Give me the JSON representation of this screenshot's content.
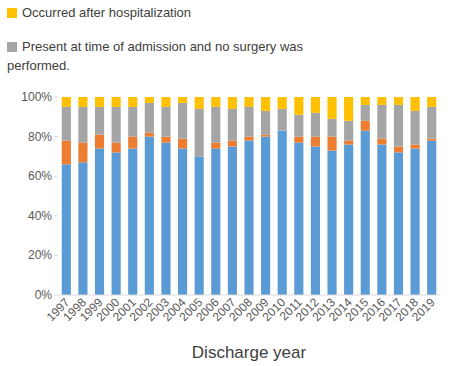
{
  "chart_data": {
    "type": "bar",
    "stacked": true,
    "grid": false,
    "x_label": "Discharge year",
    "categories": [
      "1997",
      "1998",
      "1999",
      "2000",
      "2001",
      "2002",
      "2003",
      "2004",
      "2005",
      "2006",
      "2007",
      "2008",
      "2009",
      "2010",
      "2011",
      "2012",
      "2013",
      "2014",
      "2015",
      "2016",
      "2017",
      "2018",
      "2019"
    ],
    "series": [
      {
        "color": "#5b9bd5",
        "values": [
          66,
          67,
          74,
          72,
          74,
          80,
          77,
          74,
          70,
          74,
          75,
          78,
          80,
          83,
          77,
          75,
          73,
          76,
          83,
          76,
          72,
          74,
          78
        ]
      },
      {
        "color": "#ed7d31",
        "values": [
          12,
          10,
          7,
          5,
          6,
          2,
          3,
          5,
          0,
          3,
          3,
          2,
          1,
          0,
          3,
          5,
          7,
          2,
          5,
          3,
          3,
          2,
          1
        ]
      },
      {
        "name": "Present at time of admission and no surgery was performed.",
        "color": "#a5a5a5",
        "values": [
          17,
          18,
          14,
          18,
          15,
          15,
          15,
          18,
          24,
          18,
          16,
          15,
          12,
          11,
          11,
          12,
          9,
          10,
          8,
          17,
          21,
          17,
          16
        ]
      },
      {
        "name": "Occurred after hospitalization",
        "color": "#ffc000",
        "values": [
          5,
          5,
          5,
          5,
          5,
          3,
          5,
          3,
          6,
          5,
          6,
          5,
          7,
          6,
          9,
          8,
          11,
          12,
          4,
          4,
          4,
          7,
          5
        ]
      }
    ],
    "ylim": [
      0,
      100
    ],
    "yticks": [
      {
        "value": 0,
        "label": "0%"
      },
      {
        "value": 20,
        "label": "20%"
      },
      {
        "value": 40,
        "label": "40%"
      },
      {
        "value": 60,
        "label": "60%"
      },
      {
        "value": 80,
        "label": "80%"
      },
      {
        "value": 100,
        "label": "100%"
      }
    ]
  }
}
